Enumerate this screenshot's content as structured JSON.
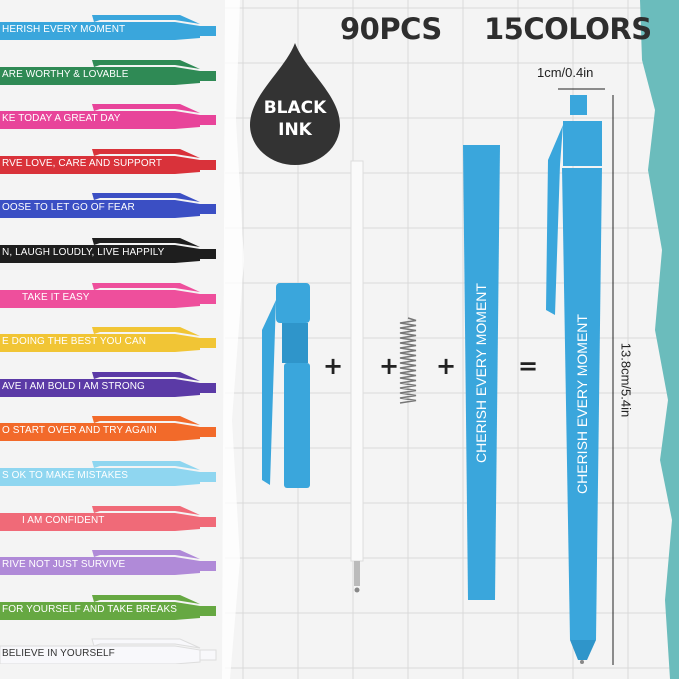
{
  "header": {
    "quantity": "90PCS",
    "colors": "15COLORS"
  },
  "ink_badge": {
    "line1": "BLACK",
    "line2": "INK",
    "color": "#333333"
  },
  "dimensions": {
    "width": "1cm/0.4in",
    "length": "13.8cm/5.4in"
  },
  "assembly": {
    "plus": "+",
    "equals": "=",
    "barrel_text": "CHERISH EVERY MOMENT",
    "pen_text": "CHERISH EVERY MOMENT",
    "pen_color": "#3aa6dc"
  },
  "accent_teal": "#6bbcbc",
  "pens": [
    {
      "text": "HERISH EVERY MOMENT",
      "color": "#3aa6dc"
    },
    {
      "text": "ARE WORTHY & LOVABLE",
      "color": "#2f8a55"
    },
    {
      "text": "KE TODAY A  GREAT DAY",
      "color": "#e8449a"
    },
    {
      "text": "RVE LOVE, CARE AND SUPPORT",
      "color": "#d9323a"
    },
    {
      "text": "OOSE TO LET GO OF FEAR",
      "color": "#3b4fc4"
    },
    {
      "text": "N, LAUGH LOUDLY, LIVE HAPPILY",
      "color": "#1e1e1e"
    },
    {
      "text": "TAKE IT EASY",
      "color": "#ee4f9c"
    },
    {
      "text": "E DOING THE BEST YOU CAN",
      "color": "#f1c535"
    },
    {
      "text": "AVE I AM BOLD I AM STRONG",
      "color": "#5b3aa6"
    },
    {
      "text": "O START OVER AND TRY AGAIN",
      "color": "#f26a2a"
    },
    {
      "text": "S OK TO MAKE MISTAKES",
      "color": "#8fd6f0"
    },
    {
      "text": "I AM CONFIDENT",
      "color": "#f06a78"
    },
    {
      "text": "RIVE NOT JUST SURVIVE",
      "color": "#b08ad8"
    },
    {
      "text": "FOR YOURSELF AND TAKE BREAKS",
      "color": "#66a842"
    },
    {
      "text": "BELIEVE IN YOURSELF",
      "color": "#f8f8fb"
    }
  ]
}
